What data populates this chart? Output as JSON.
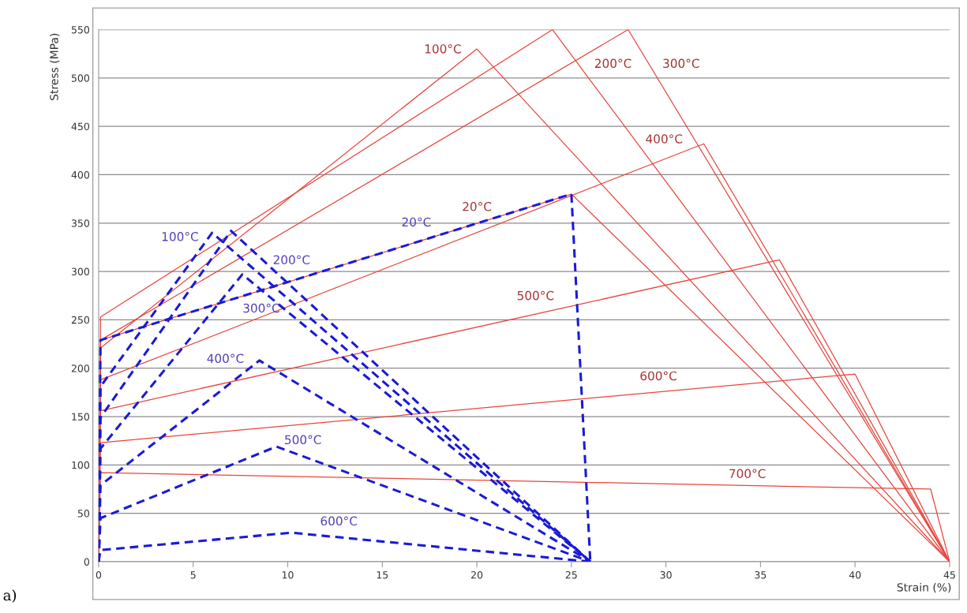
{
  "chart_data": {
    "type": "line",
    "xlabel": "Strain (%)",
    "ylabel": "Stress (MPa)",
    "xlim": [
      0,
      45
    ],
    "ylim": [
      0,
      550
    ],
    "xticks": [
      0,
      5,
      10,
      15,
      20,
      25,
      30,
      35,
      40,
      45
    ],
    "yticks": [
      0,
      50,
      100,
      150,
      200,
      250,
      300,
      350,
      400,
      450,
      500,
      550
    ],
    "grid": "y",
    "series": [
      {
        "name": "20°C",
        "color": "#e8453c",
        "line_style": "solid",
        "x": [
          0,
          0.1,
          25,
          45
        ],
        "values": [
          0,
          229,
          380,
          0
        ]
      },
      {
        "name": "100°C",
        "color": "#e8453c",
        "line_style": "solid",
        "x": [
          0,
          0.1,
          20,
          45
        ],
        "values": [
          0,
          221,
          530,
          0
        ]
      },
      {
        "name": "200°C",
        "color": "#e8453c",
        "line_style": "solid",
        "x": [
          0,
          0.1,
          24,
          45
        ],
        "values": [
          0,
          253,
          550,
          0
        ]
      },
      {
        "name": "300°C",
        "color": "#e8453c",
        "line_style": "solid",
        "x": [
          0,
          0.1,
          28,
          45
        ],
        "values": [
          0,
          229,
          550,
          0
        ]
      },
      {
        "name": "400°C",
        "color": "#e8453c",
        "line_style": "solid",
        "x": [
          0,
          0.1,
          32,
          45
        ],
        "values": [
          0,
          188,
          432,
          0
        ]
      },
      {
        "name": "500°C",
        "color": "#e8453c",
        "line_style": "solid",
        "x": [
          0,
          0.1,
          36,
          45
        ],
        "values": [
          0,
          156,
          312,
          0
        ]
      },
      {
        "name": "600°C",
        "color": "#e8453c",
        "line_style": "solid",
        "x": [
          0,
          0.1,
          40,
          45
        ],
        "values": [
          0,
          123,
          194,
          0
        ]
      },
      {
        "name": "700°C",
        "color": "#e8453c",
        "line_style": "solid",
        "x": [
          0,
          0.1,
          44,
          45
        ],
        "values": [
          0,
          92,
          75,
          0
        ]
      },
      {
        "name": "20°C",
        "color": "#1a1ad6",
        "line_style": "dashed",
        "x": [
          0,
          0.1,
          25,
          26
        ],
        "values": [
          0,
          229,
          380,
          0
        ]
      },
      {
        "name": "100°C",
        "color": "#1a1ad6",
        "line_style": "dashed",
        "x": [
          0,
          0.1,
          6,
          26
        ],
        "values": [
          0,
          181,
          340,
          0
        ]
      },
      {
        "name": "200°C",
        "color": "#1a1ad6",
        "line_style": "dashed",
        "x": [
          0,
          0.1,
          7,
          26
        ],
        "values": [
          0,
          149,
          342,
          0
        ]
      },
      {
        "name": "300°C",
        "color": "#1a1ad6",
        "line_style": "dashed",
        "x": [
          0,
          0.1,
          7.6,
          26
        ],
        "values": [
          0,
          117,
          297,
          0
        ]
      },
      {
        "name": "400°C",
        "color": "#1a1ad6",
        "line_style": "dashed",
        "x": [
          0,
          0.1,
          8.5,
          26
        ],
        "values": [
          0,
          79,
          208,
          0
        ]
      },
      {
        "name": "500°C",
        "color": "#1a1ad6",
        "line_style": "dashed",
        "x": [
          0,
          0.1,
          9.4,
          26
        ],
        "values": [
          0,
          45,
          119,
          0
        ]
      },
      {
        "name": "600°C",
        "color": "#1a1ad6",
        "line_style": "dashed",
        "x": [
          0,
          0.1,
          10.2,
          26
        ],
        "values": [
          0,
          12,
          30,
          0
        ]
      }
    ],
    "annotations": [
      "a)"
    ]
  }
}
